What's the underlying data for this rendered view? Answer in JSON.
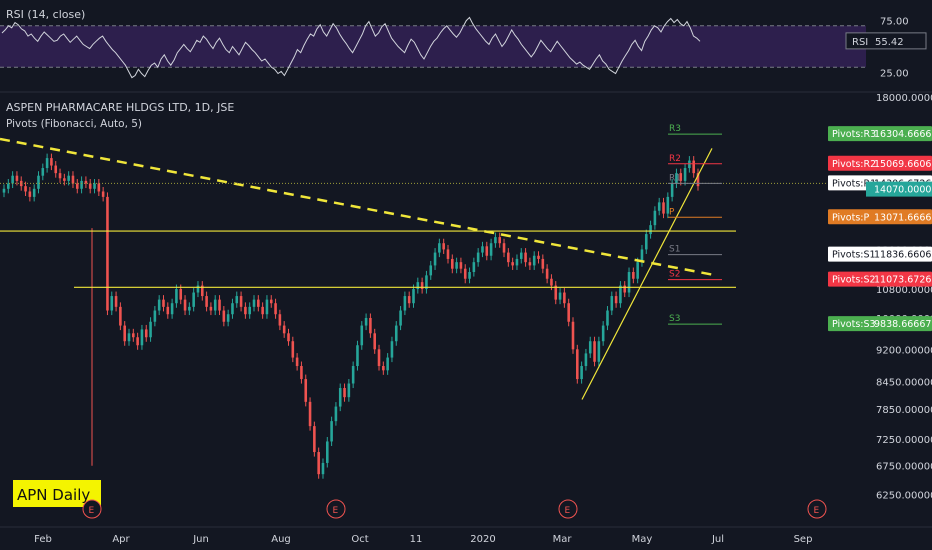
{
  "colors": {
    "background": "#131722",
    "up": "#26a69a",
    "down": "#ef5350",
    "rsi_line": "#d1d4dc",
    "rsi_band": "#2d1f4d",
    "trendline": "#f0e63a",
    "label": "#d1d4dc",
    "pivot_r": "#f23645",
    "pivot_s": "#4caf50",
    "pivot_p": "#e07b24",
    "last_price": "#26a69a"
  },
  "chart_data": [
    {
      "type": "line",
      "title": "RSI (14, close)",
      "current_label": "RSI",
      "current_value": "55.42",
      "ylim": [
        10,
        90
      ],
      "levels": [
        70,
        30
      ],
      "tick_labels": [
        {
          "value": 75,
          "label": "75.00"
        },
        {
          "value": 25,
          "label": "25.00"
        }
      ],
      "values": [
        63,
        66,
        70,
        68,
        73,
        71,
        67,
        65,
        60,
        62,
        58,
        55,
        60,
        64,
        61,
        58,
        55,
        56,
        60,
        62,
        58,
        54,
        57,
        60,
        56,
        52,
        50,
        48,
        52,
        55,
        58,
        60,
        55,
        51,
        47,
        44,
        40,
        36,
        32,
        26,
        20,
        22,
        28,
        24,
        21,
        27,
        32,
        34,
        30,
        38,
        42,
        36,
        32,
        37,
        44,
        48,
        52,
        48,
        45,
        50,
        56,
        54,
        60,
        57,
        52,
        48,
        54,
        58,
        52,
        47,
        44,
        50,
        46,
        42,
        48,
        54,
        51,
        47,
        44,
        40,
        36,
        38,
        34,
        30,
        28,
        24,
        26,
        22,
        28,
        34,
        40,
        47,
        44,
        51,
        57,
        62,
        60,
        67,
        71,
        64,
        60,
        66,
        72,
        68,
        62,
        57,
        53,
        48,
        44,
        50,
        56,
        62,
        70,
        74,
        67,
        60,
        63,
        69,
        72,
        65,
        58,
        54,
        50,
        47,
        44,
        51,
        57,
        54,
        48,
        42,
        38,
        44,
        50,
        55,
        58,
        63,
        67,
        70,
        66,
        62,
        59,
        63,
        69,
        75,
        78,
        72,
        67,
        63,
        59,
        55,
        52,
        58,
        62,
        56,
        50,
        54,
        60,
        66,
        61,
        57,
        52,
        48,
        44,
        40,
        44,
        50,
        56,
        52,
        48,
        45,
        50,
        55,
        51,
        47,
        43,
        39,
        36,
        33,
        35,
        32,
        30,
        28,
        33,
        38,
        42,
        36,
        33,
        28,
        26,
        24,
        30,
        36,
        41,
        46,
        52,
        56,
        50,
        46,
        55,
        60,
        66,
        70,
        68,
        64,
        70,
        74,
        77,
        73,
        76,
        72,
        70,
        74,
        68,
        60,
        58,
        55
      ]
    },
    {
      "type": "candlestick",
      "title": "ASPEN PHARMACARE HLDGS LTD, 1D, JSE",
      "indicator": "Pivots (Fibonacci, Auto, 5)",
      "watermark": "APN Daily",
      "ylim": [
        6000,
        18000
      ],
      "scale": "log",
      "last_price": "14070.00000",
      "y_tick_labels": [
        "18000.00000",
        "14400.00000",
        "13200.00000",
        "12000.00000",
        "10800.00000",
        "10000.00000",
        "9200.00000",
        "8450.00000",
        "7850.00000",
        "7250.00000",
        "6750.00000",
        "6250.00000"
      ],
      "x_tick_labels": [
        "Feb",
        "Apr",
        "Jun",
        "Aug",
        "Oct",
        "11",
        "2020",
        "Mar",
        "May",
        "Jul",
        "Sep"
      ],
      "event_markers": [
        "E",
        "E",
        "E",
        "E"
      ],
      "pivots": [
        {
          "name": "R3",
          "tag": "Pivots:R3",
          "value": "16304.66667",
          "level": 16304.66667,
          "kind": "s"
        },
        {
          "name": "R2",
          "tag": "Pivots:R2",
          "value": "15069.66067",
          "level": 15069.66067,
          "kind": "r"
        },
        {
          "name": "R1",
          "tag": "Pivots:R1",
          "value": "14306.67267",
          "level": 14306.67267,
          "kind": "w"
        },
        {
          "name": "P",
          "tag": "Pivots:P",
          "value": "13071.66667",
          "level": 13071.66667,
          "kind": "p"
        },
        {
          "name": "S1",
          "tag": "Pivots:S1",
          "value": "11836.66067",
          "level": 11836.66067,
          "kind": "w"
        },
        {
          "name": "S2",
          "tag": "Pivots:S2",
          "value": "11073.67267",
          "level": 11073.67267,
          "kind": "r"
        },
        {
          "name": "S3",
          "tag": "Pivots:S3",
          "value": "9838.66667",
          "level": 9838.66667,
          "kind": "s"
        }
      ],
      "horizontal_levels": [
        12600,
        10850
      ],
      "close": [
        14100,
        14300,
        14600,
        14400,
        14200,
        14000,
        13800,
        14100,
        14600,
        14900,
        15300,
        15000,
        14700,
        14500,
        14400,
        14600,
        14300,
        14100,
        14400,
        14300,
        14100,
        14300,
        14000,
        13800,
        10200,
        10600,
        10300,
        9800,
        9400,
        9600,
        9500,
        9300,
        9700,
        9500,
        9900,
        10200,
        10500,
        10300,
        10100,
        10400,
        10800,
        10500,
        10200,
        10300,
        10700,
        10900,
        10600,
        10300,
        10200,
        10500,
        10200,
        9900,
        10100,
        10400,
        10600,
        10300,
        10100,
        10300,
        10500,
        10300,
        10100,
        10500,
        10400,
        10100,
        9800,
        9600,
        9400,
        9000,
        8800,
        8500,
        8000,
        7500,
        7000,
        6600,
        6800,
        7200,
        7600,
        7900,
        8300,
        8100,
        8400,
        8800,
        9300,
        9800,
        10000,
        9600,
        9200,
        8800,
        8700,
        9000,
        9400,
        9800,
        10200,
        10600,
        10400,
        10800,
        11000,
        10800,
        11200,
        11500,
        11900,
        12200,
        12000,
        11700,
        11400,
        11600,
        11400,
        11100,
        11300,
        11600,
        11900,
        12100,
        11800,
        12200,
        12400,
        12200,
        11900,
        11600,
        11500,
        11700,
        11900,
        11600,
        11500,
        11800,
        11700,
        11400,
        11100,
        10900,
        10500,
        10700,
        10400,
        9900,
        9200,
        8500,
        8800,
        9100,
        9400,
        8900,
        9400,
        9800,
        10200,
        10600,
        10400,
        10900,
        10700,
        11300,
        11100,
        11600,
        12000,
        12500,
        12800,
        13300,
        13600,
        13200,
        13800,
        14300,
        14700,
        14400,
        14900,
        15200,
        14700,
        14200
      ]
    }
  ]
}
